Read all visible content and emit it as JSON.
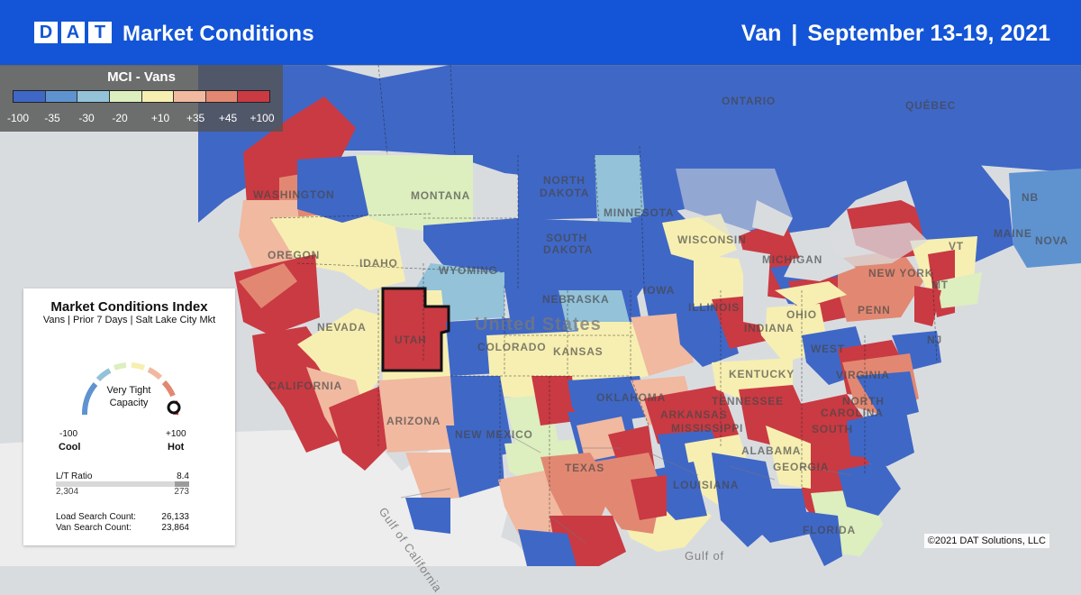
{
  "header": {
    "logo_letters": [
      "D",
      "A",
      "T"
    ],
    "title": "Market Conditions",
    "equipment": "Van",
    "separator": "|",
    "date_range": "September 13-19, 2021"
  },
  "legend": {
    "title": "MCI - Vans",
    "colors": [
      "#3f67c6",
      "#5f93d0",
      "#93c2d9",
      "#ddeebf",
      "#f7efb1",
      "#f0b9a0",
      "#e28872",
      "#c93a43"
    ],
    "ticks": [
      "-100",
      "-35",
      "-30",
      "-20",
      "+10",
      "+35",
      "+45",
      "+100"
    ]
  },
  "panel": {
    "title": "Market Conditions Index",
    "subtitle": "Vans | Prior 7 Days | Salt Lake City Mkt",
    "gauge": {
      "status_line_1": "Very Tight",
      "status_line_2": "Capacity",
      "min": "-100",
      "min_label": "Cool",
      "max": "+100",
      "max_label": "Hot",
      "level_fraction": 0.98
    },
    "lt_ratio": {
      "label": "L/T Ratio",
      "value": "8.4",
      "loads": "2,304",
      "trucks": "273",
      "truck_share": 0.106
    },
    "counts": [
      {
        "label": "Load Search Count:",
        "value": "26,133"
      },
      {
        "label": "Van Search Count:",
        "value": "23,864"
      }
    ]
  },
  "map_labels": [
    "ONTARIO",
    "QUÉBEC",
    "NORTH",
    "DAKOTA",
    "SOUTH",
    "DAKOTA",
    "MONTANA",
    "WYOMING",
    "IDAHO",
    "OREGON",
    "WASHINGTON",
    "NEVADA",
    "UTAH",
    "COLORADO",
    "KANSAS",
    "NEBRASKA",
    "IOWA",
    "ILLINOIS",
    "INDIANA",
    "OHIO",
    "PENN",
    "NEW YORK",
    "MAINE",
    "NOVA",
    "NB",
    "NJ",
    "CALIFORNIA",
    "ARIZONA",
    "NEW MEXICO",
    "TEXAS",
    "OKLAHOMA",
    "ARKANSAS",
    "TENNESSEE",
    "MISSISSIPPI",
    "ALABAMA",
    "GEORGIA",
    "FLORIDA",
    "SOUTH",
    "NORTH",
    "CAROLINA",
    "VIRGINIA",
    "WEST",
    "KENTUCKY",
    "MINNESOTA",
    "WISCONSIN",
    "MICHIGAN",
    "LOUISIANA",
    "United States",
    "Gulf of",
    "Gulf of California",
    "MT",
    "VT"
  ],
  "copyright": "©2021 DAT Solutions, LLC"
}
